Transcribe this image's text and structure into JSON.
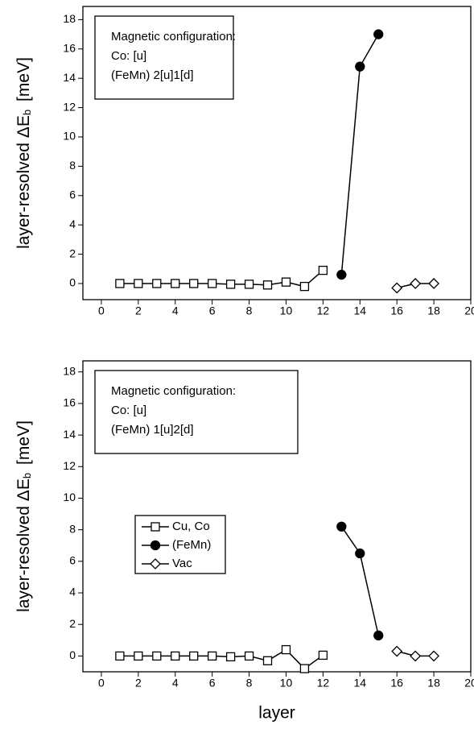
{
  "chart_data": [
    {
      "type": "line",
      "ylabel": [
        "layer-resolved ΔE",
        "b",
        "[meV]"
      ],
      "annotation": [
        "Magnetic configuration:",
        "Co: [u]",
        "(FeMn) 2[u]1[d]"
      ],
      "xlim": [
        -1,
        20
      ],
      "xticks": [
        0,
        2,
        4,
        6,
        8,
        10,
        12,
        14,
        16,
        18,
        20
      ],
      "ylim": [
        -1.1,
        18.9
      ],
      "yticks": [
        0,
        2,
        4,
        6,
        8,
        10,
        12,
        14,
        16,
        18
      ],
      "series": [
        {
          "marker": "square",
          "filled": false,
          "color": "#000000",
          "x": [
            1,
            2,
            3,
            4,
            5,
            6,
            7,
            8,
            9,
            10,
            11,
            12
          ],
          "values": [
            0,
            0,
            0,
            0,
            0,
            0,
            -0.05,
            -0.05,
            -0.1,
            0.1,
            -0.2,
            0.9
          ]
        },
        {
          "marker": "circle",
          "filled": true,
          "color": "#000000",
          "x": [
            13,
            14,
            15
          ],
          "values": [
            0.6,
            14.8,
            17.0
          ]
        },
        {
          "marker": "diamond",
          "filled": false,
          "color": "#000000",
          "x": [
            16,
            17,
            18
          ],
          "values": [
            -0.3,
            0,
            0
          ]
        }
      ]
    },
    {
      "type": "line",
      "ylabel": [
        "layer-resolved ΔE",
        "b",
        "[meV]"
      ],
      "xlabel": "layer",
      "annotation": [
        "Magnetic configuration:",
        "Co: [u]",
        "(FeMn) 1[u]2[d]"
      ],
      "legend": "center left",
      "xlim": [
        -1,
        20
      ],
      "xticks": [
        0,
        2,
        4,
        6,
        8,
        10,
        12,
        14,
        16,
        18,
        20
      ],
      "ylim": [
        -1,
        18.7
      ],
      "yticks": [
        0,
        2,
        4,
        6,
        8,
        10,
        12,
        14,
        16,
        18
      ],
      "series": [
        {
          "name": "Cu, Co",
          "marker": "square",
          "filled": false,
          "color": "#000000",
          "x": [
            1,
            2,
            3,
            4,
            5,
            6,
            7,
            8,
            9,
            10,
            11,
            12
          ],
          "values": [
            0,
            0,
            0,
            0,
            0,
            0,
            -0.05,
            0,
            -0.3,
            0.4,
            -0.8,
            0.05
          ]
        },
        {
          "name": "(FeMn)",
          "marker": "circle",
          "filled": true,
          "color": "#000000",
          "x": [
            13,
            14,
            15
          ],
          "values": [
            8.2,
            6.5,
            1.3
          ]
        },
        {
          "name": "Vac",
          "marker": "diamond",
          "filled": false,
          "color": "#000000",
          "x": [
            16,
            17,
            18
          ],
          "values": [
            0.3,
            0,
            0
          ]
        }
      ]
    }
  ]
}
